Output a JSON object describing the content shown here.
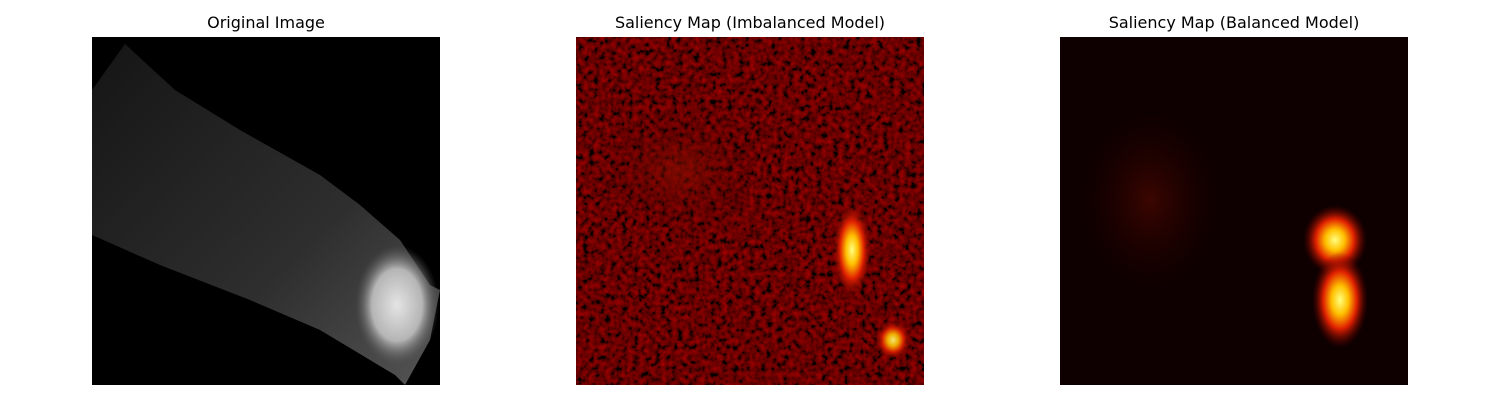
{
  "panels": [
    {
      "title": "Original Image"
    },
    {
      "title": "Saliency Map (Imbalanced Model)"
    },
    {
      "title": "Saliency Map (Balanced Model)"
    }
  ]
}
